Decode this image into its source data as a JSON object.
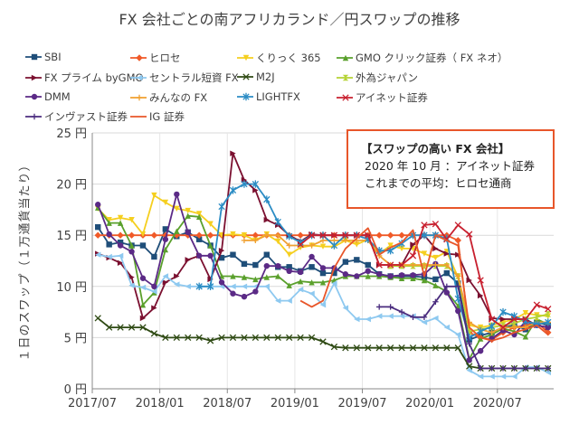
{
  "chart_data": {
    "type": "line",
    "title": "FX 会社ごとの南アフリカランド／円スワップの推移",
    "ylabel": "１日のスワップ（１万通貨当たり）",
    "xlabel": "",
    "ylim": [
      0,
      25
    ],
    "y_ticks": [
      0,
      5,
      10,
      15,
      20,
      25
    ],
    "y_tick_unit": "円",
    "x_tick_labels": [
      "2017/07",
      "2018/01",
      "2018/07",
      "2019/01",
      "2019/07",
      "2020/01",
      "2020/07"
    ],
    "x_start": "2017/07",
    "x_count_months": 41,
    "grid": true,
    "legend_position": "top",
    "series": [
      {
        "name": "SBI",
        "color": "#1f4e79",
        "marker": "square",
        "values": [
          15.8,
          14.1,
          14.3,
          14.0,
          14.0,
          12.9,
          15.6,
          14.9,
          15.3,
          14.6,
          14.0,
          12.8,
          13.1,
          12.2,
          12.1,
          13.1,
          11.9,
          11.9,
          11.5,
          11.9,
          11.3,
          11.3,
          12.4,
          12.6,
          12.1,
          11.2,
          11.0,
          11.0,
          11.0,
          10.9,
          10.7,
          11.3,
          10.3,
          4.8,
          5.2,
          5.5,
          6.0,
          6.2,
          5.8,
          6.5,
          6.2
        ]
      },
      {
        "name": "ヒロセ",
        "color": "#f05a28",
        "marker": "diamond",
        "values": [
          15,
          15,
          15,
          15,
          15,
          15,
          15,
          15,
          15,
          15,
          15,
          15,
          15,
          15,
          15,
          15,
          15,
          15,
          15,
          15,
          15,
          15,
          15,
          15,
          15,
          15,
          15,
          15,
          15,
          15,
          15,
          15,
          14.5,
          5.5,
          5.0,
          4.8,
          5.5,
          6.0,
          6.2,
          6.5,
          5.5
        ]
      },
      {
        "name": "くりっく 365",
        "color": "#f5cf1f",
        "marker": "tri-down",
        "values": [
          17.6,
          16.5,
          16.7,
          16.5,
          15.1,
          18.9,
          18.2,
          17.6,
          17.4,
          17.1,
          16.1,
          15.0,
          15.1,
          15.0,
          14.5,
          15.1,
          14.4,
          13.1,
          13.8,
          14.0,
          13.9,
          13.9,
          14.5,
          14.1,
          14.6,
          13.2,
          14.0,
          13.7,
          13.7,
          13.2,
          12.8,
          13.4,
          10.9,
          6.2,
          6.0,
          6.2,
          6.5,
          6.8,
          7.4,
          7.2,
          7.1
        ]
      },
      {
        "name": "GMO クリック証券（ FX ネオ）",
        "color": "#5aa02c",
        "marker": "tri-up",
        "values": [
          17.7,
          16.2,
          16.2,
          14.0,
          8.2,
          9.4,
          13.6,
          15.4,
          16.9,
          16.8,
          14.0,
          11.0,
          11.0,
          10.9,
          10.7,
          10.9,
          11.0,
          10.1,
          10.5,
          10.4,
          10.4,
          10.6,
          11.0,
          11.0,
          11.0,
          11.0,
          10.9,
          10.8,
          10.8,
          10.6,
          10.1,
          9.5,
          8.1,
          2.9,
          4.9,
          5.3,
          5.9,
          5.6,
          5.1,
          6.8,
          6.3
        ]
      },
      {
        "name": "FX プライム byGMO",
        "color": "#7b1030",
        "marker": "tri-right",
        "values": [
          13.2,
          12.8,
          12.3,
          10.9,
          6.9,
          7.9,
          10.4,
          11.0,
          12.6,
          13.0,
          10.7,
          13.5,
          23.0,
          20.4,
          19.4,
          16.5,
          16.0,
          15.0,
          14.4,
          15.1,
          15,
          15,
          15,
          15,
          15,
          12.1,
          12.1,
          12.1,
          14.1,
          15.0,
          13.7,
          13.2,
          13.1,
          10.6,
          9.1,
          6.9,
          6.8,
          6.8,
          6.8,
          6.2,
          6.0
        ]
      },
      {
        "name": "セントラル短資 FX",
        "color": "#8ec9f0",
        "marker": "tri-left",
        "values": [
          13.1,
          12.9,
          13.0,
          10.1,
          9.9,
          9.5,
          11.0,
          10.2,
          10.0,
          10.0,
          10.0,
          10.0,
          10.0,
          10.0,
          10.0,
          10.0,
          8.6,
          8.6,
          9.7,
          9.3,
          8.2,
          10.3,
          7.9,
          6.8,
          6.8,
          7.1,
          7.1,
          7.1,
          7.1,
          6.5,
          6.9,
          6.0,
          5.3,
          1.8,
          1.2,
          1.2,
          1.2,
          1.2,
          2.1,
          2.1,
          1.6
        ]
      },
      {
        "name": "M2J",
        "color": "#2f4a14",
        "marker": "bowtie",
        "values": [
          6.9,
          6.0,
          6.0,
          6.0,
          6.0,
          5.4,
          5.0,
          5.0,
          5.0,
          5.0,
          4.7,
          5.0,
          5.0,
          5.0,
          5.0,
          5.0,
          5.0,
          5.0,
          5.0,
          5.0,
          4.6,
          4.1,
          4.0,
          4.0,
          4.0,
          4.0,
          4.0,
          4.0,
          4.0,
          4.0,
          4.0,
          4.0,
          4.0,
          2.2,
          2.0,
          2.0,
          2.0,
          2.0,
          2.0,
          2.0,
          2.0
        ]
      },
      {
        "name": "外為ジャパン",
        "color": "#b5d334",
        "marker": "hourglass",
        "values": [
          null,
          null,
          null,
          null,
          null,
          null,
          null,
          null,
          null,
          null,
          null,
          null,
          null,
          null,
          null,
          null,
          null,
          null,
          null,
          null,
          null,
          null,
          null,
          null,
          null,
          null,
          12.0,
          12.0,
          12.0,
          12.0,
          12.0,
          12.0,
          11.0,
          5.6,
          5.8,
          6.0,
          6.2,
          6.4,
          6.8,
          7.0,
          7.3
        ]
      },
      {
        "name": "DMM",
        "color": "#5b2a86",
        "marker": "circle",
        "values": [
          18.0,
          15.1,
          14.0,
          13.4,
          10.8,
          10.0,
          14.6,
          19.0,
          15.3,
          13.0,
          13.0,
          10.4,
          9.3,
          9.0,
          9.5,
          12.0,
          12.0,
          11.5,
          11.4,
          12.9,
          11.8,
          11.8,
          11.2,
          11.0,
          11.5,
          11.2,
          11.0,
          11.1,
          11.1,
          11.2,
          12.2,
          9.4,
          7.6,
          2.8,
          3.7,
          4.9,
          5.7,
          5.3,
          6.6,
          6.2,
          6.0
        ]
      },
      {
        "name": "みんなの FX",
        "color": "#f0a030",
        "marker": "plus",
        "values": [
          null,
          null,
          null,
          null,
          null,
          null,
          null,
          null,
          null,
          null,
          null,
          null,
          null,
          14.5,
          14.5,
          15,
          15,
          14,
          14,
          14,
          14.5,
          14.5,
          14.5,
          14.5,
          14.5,
          13,
          12.1,
          12.1,
          12.1,
          12.1,
          12.1,
          12.1,
          11,
          6.5,
          5.8,
          5.5,
          6.0,
          6.0,
          6.0,
          6.5,
          6.5
        ]
      },
      {
        "name": "LIGHTFX",
        "color": "#2b8cc4",
        "marker": "star",
        "values": [
          null,
          null,
          null,
          null,
          null,
          null,
          null,
          null,
          null,
          10,
          10,
          17.8,
          19.4,
          20.0,
          20.0,
          18.5,
          16.3,
          14.9,
          14.3,
          15,
          15,
          14.0,
          15,
          15,
          14.6,
          13.5,
          13.5,
          14.2,
          15.0,
          15.0,
          15.0,
          14.7,
          8.8,
          5.0,
          5.6,
          6.1,
          7.5,
          7.1,
          6.6,
          6.3,
          6.5
        ]
      },
      {
        "name": "アイネット証券",
        "color": "#c8202f",
        "marker": "cross",
        "values": [
          null,
          null,
          null,
          null,
          null,
          null,
          null,
          null,
          null,
          null,
          null,
          null,
          null,
          null,
          null,
          null,
          null,
          null,
          14.1,
          15,
          15,
          15,
          15,
          15,
          15,
          12.1,
          12.1,
          12.1,
          13,
          16.0,
          16.1,
          14.6,
          16.0,
          15.1,
          10.6,
          6.8,
          6.0,
          6.8,
          6.8,
          8.2,
          7.8
        ]
      },
      {
        "name": "インヴァスト証券",
        "color": "#4b2d7f",
        "marker": "plus",
        "values": [
          null,
          null,
          null,
          null,
          null,
          null,
          null,
          null,
          null,
          null,
          null,
          null,
          null,
          null,
          null,
          null,
          null,
          null,
          null,
          null,
          null,
          null,
          null,
          null,
          null,
          8,
          8,
          7.5,
          7,
          7,
          8.5,
          10,
          10,
          4.4,
          2,
          2,
          2,
          2,
          2,
          2,
          2
        ]
      },
      {
        "name": "IG 証券",
        "color": "#e8562a",
        "marker": "none",
        "values": [
          null,
          null,
          null,
          null,
          null,
          null,
          null,
          null,
          null,
          null,
          null,
          null,
          null,
          null,
          null,
          null,
          null,
          null,
          8.6,
          8.0,
          8.6,
          11.8,
          13.7,
          14.7,
          15.7,
          13.1,
          13.8,
          14.3,
          15.5,
          11.0,
          15.0,
          14.5,
          14.0,
          6.0,
          5.0,
          4.7,
          5.0,
          5.5,
          5.8,
          6.2,
          5.3
        ]
      }
    ]
  },
  "annotation": {
    "heading": "【スワップの高い FX 会社】",
    "line1": "2020 年 10 月 ：アイネット証券",
    "line2": "これまでの平均：ヒロセ通商"
  }
}
